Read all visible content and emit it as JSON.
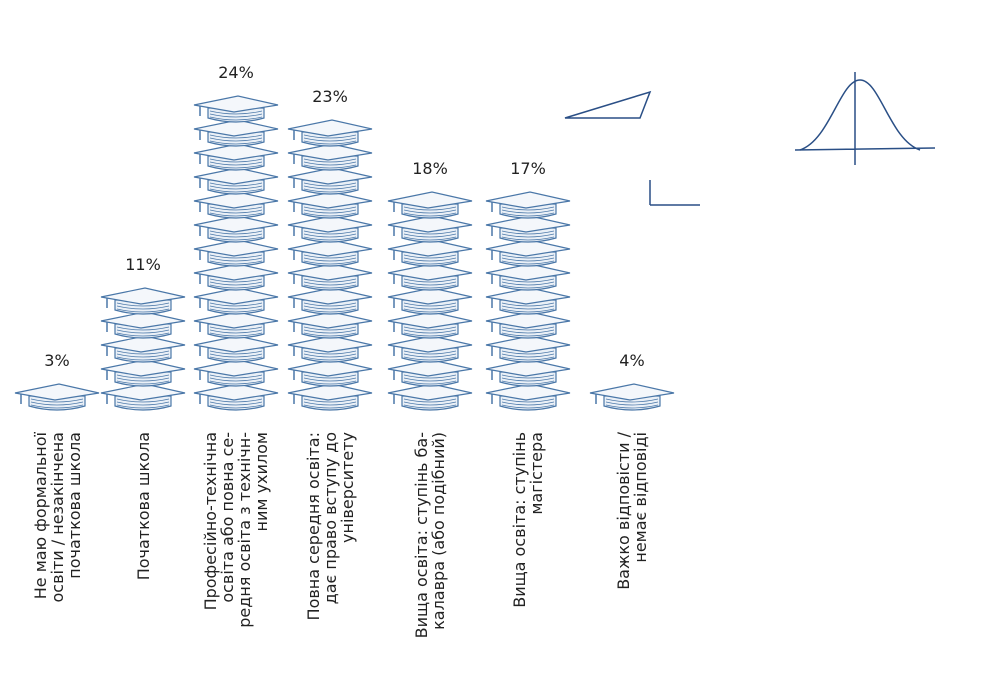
{
  "chart_data": {
    "type": "pictograph",
    "categories": [
      "Не маю формальної\nосвіти / незакінчена\nпочаткова школа",
      "Початкова школа",
      "Професійно-технічна\nосвіта або повна се-\nредня освіта з технічн-\nним ухилом",
      "Повна середня освіта:\nдає право вступу до\nуніверситету",
      "Вища освіта: ступінь ба-\nкалавра (або подібний)",
      "Вища освіта: ступінь\nмагістера",
      "Важко відповісти /\nнемає відповіді"
    ],
    "values": [
      3,
      11,
      24,
      23,
      18,
      17,
      4
    ],
    "value_labels": [
      "3%",
      "11%",
      "24%",
      "23%",
      "18%",
      "17%",
      "4%"
    ],
    "color": "#4a77a8"
  }
}
